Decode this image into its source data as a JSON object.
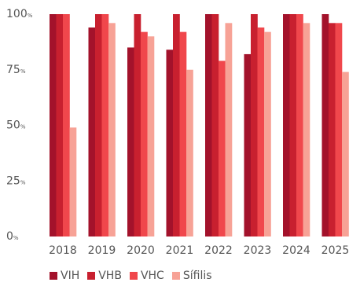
{
  "chart_data": {
    "type": "bar",
    "categories": [
      "2018",
      "2019",
      "2020",
      "2021",
      "2022",
      "2023",
      "2024",
      "2025"
    ],
    "series": [
      {
        "name": "VIH",
        "color": "#a3122b",
        "values": [
          100,
          94,
          85,
          84,
          100,
          82,
          100,
          100
        ]
      },
      {
        "name": "VHB",
        "color": "#c8202f",
        "values": [
          100,
          100,
          100,
          100,
          100,
          100,
          100,
          96
        ]
      },
      {
        "name": "VHC",
        "color": "#f0474c",
        "values": [
          100,
          100,
          92,
          92,
          79,
          94,
          100,
          96
        ]
      },
      {
        "name": "Sífilis",
        "color": "#f7a296",
        "values": [
          49,
          96,
          90,
          75,
          96,
          92,
          96,
          74
        ]
      }
    ],
    "ylim": [
      0,
      100
    ],
    "yticks": [
      {
        "value": 0,
        "num": "0",
        "unit": "%"
      },
      {
        "value": 25,
        "num": "25",
        "unit": "%"
      },
      {
        "value": 50,
        "num": "50",
        "unit": "%"
      },
      {
        "value": 75,
        "num": "75",
        "unit": "%"
      },
      {
        "value": 100,
        "num": "100",
        "unit": "%"
      }
    ],
    "grid": false,
    "legend_position": "bottom-left"
  }
}
